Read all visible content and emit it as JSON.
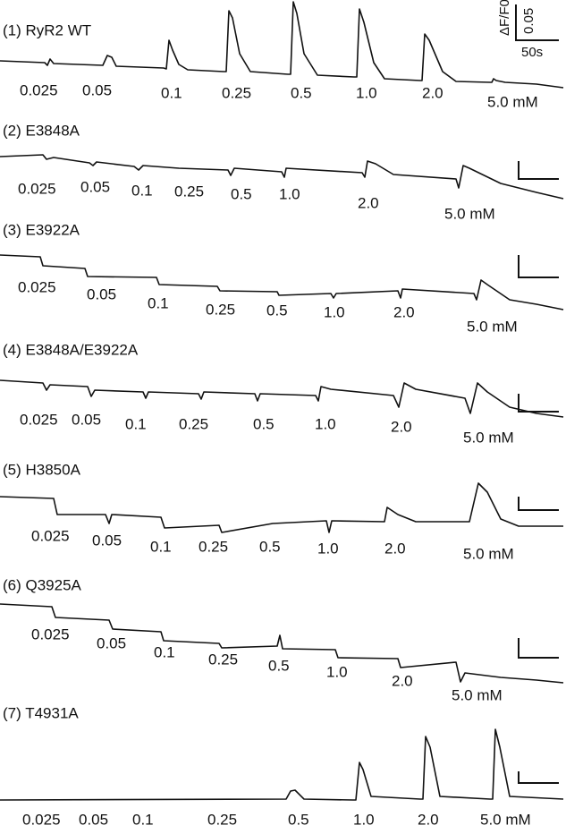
{
  "figure": {
    "scale_bar": {
      "y_label": "ΔF/F0",
      "y_value": "0.05",
      "x_value": "50s"
    },
    "panels": [
      {
        "title": "(1) RyR2 WT",
        "labels": [
          "0.025",
          "0.05",
          "0.1",
          "0.25",
          "0.5",
          "1.0",
          "2.0",
          "5.0 mM"
        ]
      },
      {
        "title": "(2) E3848A",
        "labels": [
          "0.025",
          "0.05",
          "0.1",
          "0.25",
          "0.5",
          "1.0",
          "2.0",
          "5.0 mM"
        ]
      },
      {
        "title": "(3) E3922A",
        "labels": [
          "0.025",
          "0.05",
          "0.1",
          "0.25",
          "0.5",
          "1.0",
          "2.0",
          "5.0 mM"
        ]
      },
      {
        "title": "(4) E3848A/E3922A",
        "labels": [
          "0.025",
          "0.05",
          "0.1",
          "0.25",
          "0.5",
          "1.0",
          "2.0",
          "5.0 mM"
        ]
      },
      {
        "title": "(5) H3850A",
        "labels": [
          "0.025",
          "0.05",
          "0.1",
          "0.25",
          "0.5",
          "1.0",
          "2.0",
          "5.0 mM"
        ]
      },
      {
        "title": "(6) Q3925A",
        "labels": [
          "0.025",
          "0.05",
          "0.1",
          "0.25",
          "0.5",
          "1.0",
          "2.0",
          "5.0 mM"
        ]
      },
      {
        "title": "(7) T4931A",
        "labels": [
          "0.025",
          "0.05",
          "0.1",
          "0.25",
          "0.5",
          "1.0",
          "2.0",
          "5.0 mM"
        ]
      }
    ]
  }
}
